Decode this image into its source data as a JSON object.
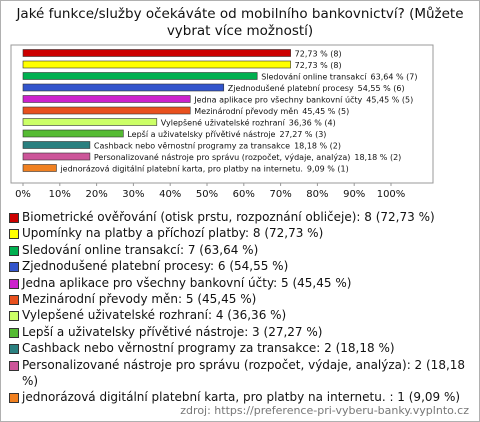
{
  "chart_data": {
    "type": "bar",
    "orientation": "horizontal",
    "title": "Jaké funkce/služby očekáváte od mobilního bankovnictví? (Můžete vybrat více možností)",
    "categories": [
      "Biometrické ověřování (otisk prstu, rozpoznání obličeje)",
      "Upomínky na platby a příchozí platby",
      "Sledování online transakcí",
      "Zjednodušené platební procesy",
      "Jedna aplikace pro všechny bankovní účty",
      "Mezinárodní převody měn",
      "Vylepšené uživatelské rozhraní",
      "Lepší a uživatelsky přívětivé nástroje",
      "Cashback nebo věrnostní programy za transakce",
      "Personalizované nástroje pro správu (rozpočet, výdaje, analýza)",
      "jednorázová digitální platební karta, pro platby na internetu."
    ],
    "bar_names": [
      null,
      null,
      "Sledování online transakcí",
      "Zjednodušené platební procesy",
      "Jedna aplikace pro všechny bankovní účty",
      "Mezinárodní převody měn",
      "Vylepšené uživatelské rozhraní",
      "Lepší a uživatelsky přívětivé nástroje",
      "Cashback nebo věrnostní programy za transakce",
      "Personalizované nástroje pro správu (rozpočet, výdaje, analýza)",
      "jednorázová digitální platební karta, pro platby na internetu."
    ],
    "values": [
      72.73,
      72.73,
      63.64,
      54.55,
      45.45,
      45.45,
      36.36,
      27.27,
      18.18,
      18.18,
      9.09
    ],
    "value_labels": [
      "72,73 % (8)",
      "72,73 % (8)",
      "63,64 % (7)",
      "54,55 % (6)",
      "45,45 % (5)",
      "45,45 % (5)",
      "36,36 % (4)",
      "27,27 % (3)",
      "18,18 % (2)",
      "18,18 % (2)",
      "9,09 % (1)"
    ],
    "legend_labels": [
      "Biometrické ověřování (otisk prstu, rozpoznání obličeje): 8 (72,73 %)",
      "Upomínky na platby a příchozí platby: 8 (72,73 %)",
      "Sledování online transakcí: 7 (63,64 %)",
      "Zjednodušené platební procesy: 6 (54,55 %)",
      "Jedna aplikace pro všechny bankovní účty: 5 (45,45 %)",
      "Mezinárodní převody měn: 5 (45,45 %)",
      "Vylepšené uživatelské rozhraní: 4 (36,36 %)",
      "Lepší a uživatelsky přívětivé nástroje: 3 (27,27 %)",
      "Cashback nebo věrnostní programy za transakce: 2 (18,18 %)",
      "Personalizované nástroje pro správu (rozpočet, výdaje, analýza): 2 (18,18 %)",
      "jednorázová digitální platební karta, pro platby na internetu. : 1 (9,09 %)"
    ],
    "colors": [
      "#cc0000",
      "#ffff00",
      "#00b050",
      "#3355cc",
      "#cc22cc",
      "#e8501e",
      "#ccff66",
      "#55bb33",
      "#2a8080",
      "#cc5599",
      "#f08020"
    ],
    "xlim": [
      0,
      100
    ],
    "xticks": [
      {
        "value": 0,
        "label": "0%"
      },
      {
        "value": 10,
        "label": "10%"
      },
      {
        "value": 20,
        "label": "20%"
      },
      {
        "value": 30,
        "label": "30%"
      },
      {
        "value": 40,
        "label": "40%"
      },
      {
        "value": 50,
        "label": "50%"
      },
      {
        "value": 60,
        "label": "60%"
      },
      {
        "value": 70,
        "label": "70%"
      },
      {
        "value": 80,
        "label": "80%"
      },
      {
        "value": 90,
        "label": "90%"
      },
      {
        "value": 100,
        "label": "100%"
      }
    ],
    "source": "zdroj: https://preference-pri-vyberu-banky.vyplnto.cz"
  }
}
